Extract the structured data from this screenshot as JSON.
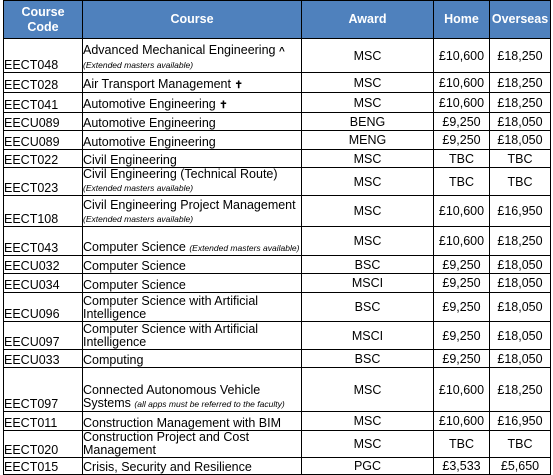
{
  "headers": {
    "code_line1": "Course",
    "code_line2": "Code",
    "course": "Course",
    "award": "Award",
    "home": "Home",
    "overseas": "Overseas"
  },
  "rows": [
    {
      "code": "EECT048",
      "course": "Advanced Mechanical Engineering",
      "mark": "^",
      "note": "(Extended masters available)",
      "award": "MSC",
      "home": "£10,600",
      "overseas": "£18,250"
    },
    {
      "code": "EECT028",
      "course": "Air Transport Management",
      "mark": "✝",
      "note": "",
      "award": "MSC",
      "home": "£10,600",
      "overseas": "£18,250"
    },
    {
      "code": "EECT041",
      "course": "Automotive Engineering",
      "mark": "✝",
      "note": "",
      "award": "MSC",
      "home": "£10,600",
      "overseas": "£18,250"
    },
    {
      "code": "EECU089",
      "course": "Automotive Engineering",
      "mark": "",
      "note": "",
      "award": "BENG",
      "home": "£9,250",
      "overseas": "£18,050"
    },
    {
      "code": "EECU089",
      "course": "Automotive Engineering",
      "mark": "",
      "note": "",
      "award": "MENG",
      "home": "£9,250",
      "overseas": "£18,050"
    },
    {
      "code": "EECT022",
      "course": "Civil Engineering",
      "mark": "",
      "note": "",
      "award": "MSC",
      "home": "TBC",
      "overseas": "TBC"
    },
    {
      "code": "EECT023",
      "course": "Civil Engineering (Technical Route)",
      "mark": "",
      "note": "(Extended masters available)",
      "award": "MSC",
      "home": "TBC",
      "overseas": "TBC"
    },
    {
      "code": "EECT108",
      "course": "Civil Engineering Project Management",
      "mark": "",
      "note": "(Extended masters available)",
      "award": "MSC",
      "home": "£10,600",
      "overseas": "£16,950"
    },
    {
      "code": "EECT043",
      "course": "Computer Science",
      "mark": "",
      "note": "(Extended masters available)",
      "award": "MSC",
      "home": "£10,600",
      "overseas": "£18,250"
    },
    {
      "code": "EECU032",
      "course": "Computer Science",
      "mark": "",
      "note": "",
      "award": "BSC",
      "home": "£9,250",
      "overseas": "£18,050"
    },
    {
      "code": "EECU034",
      "course": "Computer Science",
      "mark": "",
      "note": "",
      "award": "MSCI",
      "home": "£9,250",
      "overseas": "£18,050"
    },
    {
      "code": "EECU096",
      "course": "Computer Science with Artificial Intelligence",
      "mark": "",
      "note": "",
      "award": "BSC",
      "home": "£9,250",
      "overseas": "£18,050"
    },
    {
      "code": "EECU097",
      "course": "Computer Science with Artificial Intelligence",
      "mark": "",
      "note": "",
      "award": "MSCI",
      "home": "£9,250",
      "overseas": "£18,050"
    },
    {
      "code": "EECU033",
      "course": "Computing",
      "mark": "",
      "note": "",
      "award": "BSC",
      "home": "£9,250",
      "overseas": "£18,050"
    },
    {
      "code": "EECT097",
      "course": "Connected Autonomous Vehicle Systems",
      "mark": "",
      "note": "(all apps must be referred to the faculty)",
      "award": "MSC",
      "home": "£10,600",
      "overseas": "£18,250"
    },
    {
      "code": "EECT011",
      "course": "Construction Management with BIM",
      "mark": "",
      "note": "",
      "award": "MSC",
      "home": "£10,600",
      "overseas": "£16,950"
    },
    {
      "code": "EECT020",
      "course": "Construction Project and Cost Management",
      "mark": "",
      "note": "",
      "award": "MSC",
      "home": "TBC",
      "overseas": "TBC"
    },
    {
      "code": "EECT015",
      "course": "Crisis, Security and Resilience",
      "mark": "",
      "note": "",
      "award": "PGC",
      "home": "£3,533",
      "overseas": "£5,650"
    }
  ]
}
